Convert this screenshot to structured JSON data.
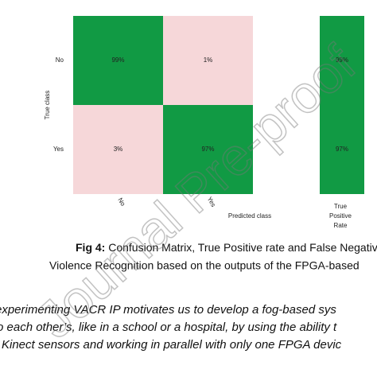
{
  "figure": {
    "matrix": {
      "rows": [
        "No",
        "Yes"
      ],
      "cols": [
        "No",
        "Yes"
      ],
      "cells": [
        [
          "99%",
          "1%"
        ],
        [
          "3%",
          "97%"
        ]
      ],
      "y_label": "True class",
      "x_label": "Predicted class"
    },
    "tpr": {
      "cells": [
        "99%",
        "97%"
      ],
      "label": [
        "True",
        "Positive",
        "Rate"
      ]
    }
  },
  "caption": {
    "label": "Fig 4:",
    "lines": [
      "Confusion Matrix, True Positive rate and False Negativ",
      "Violence Recognition based on the outputs of the FPGA-based"
    ]
  },
  "body": {
    "lines": [
      "experimenting VACR IP motivates us to develop a fog-based sys",
      "o each other’s, like in a school or a hospital, by using the ability t",
      "Kinect sensors and working in parallel with only one FPGA devic"
    ]
  },
  "watermark": "Journal Pre-proof"
}
